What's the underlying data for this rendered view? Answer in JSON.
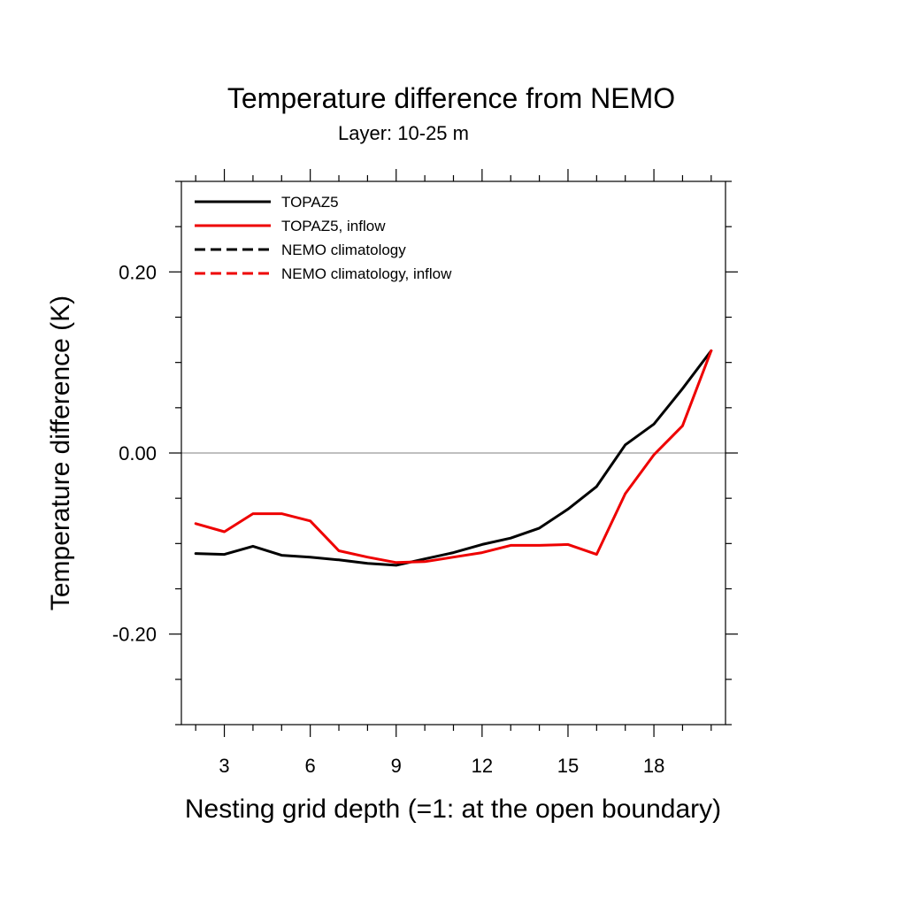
{
  "chart_data": {
    "type": "line",
    "title": "Temperature difference from NEMO",
    "subtitle": "Layer: 10-25 m",
    "xlabel": "Nesting grid depth (=1: at the open boundary)",
    "ylabel": "Temperature difference (K)",
    "xlim": [
      1.5,
      20.5
    ],
    "ylim": [
      -0.3,
      0.3
    ],
    "x_ticks": [
      3,
      6,
      9,
      12,
      15,
      18
    ],
    "x_tick_labels": [
      "3",
      "6",
      "9",
      "12",
      "15",
      "18"
    ],
    "y_ticks": [
      -0.2,
      0.0,
      0.2
    ],
    "y_tick_labels": [
      "-0.20",
      "0.00",
      "0.20"
    ],
    "zero_line": true,
    "grid": false,
    "legend_position": "top-left",
    "series": [
      {
        "name": "TOPAZ5",
        "color": "#000000",
        "dash": "solid",
        "x": [
          2,
          3,
          4,
          5,
          6,
          7,
          8,
          9,
          10,
          11,
          12,
          13,
          14,
          15,
          16,
          17,
          18,
          19,
          20
        ],
        "y": [
          -0.111,
          -0.112,
          -0.103,
          -0.113,
          -0.115,
          -0.118,
          -0.122,
          -0.124,
          -0.117,
          -0.11,
          -0.101,
          -0.094,
          -0.083,
          -0.062,
          -0.037,
          0.009,
          0.032,
          0.071,
          0.113
        ]
      },
      {
        "name": "TOPAZ5, inflow",
        "color": "#ee0000",
        "dash": "solid",
        "x": [
          2,
          3,
          4,
          5,
          6,
          7,
          8,
          9,
          10,
          11,
          12,
          13,
          14,
          15,
          16,
          17,
          18,
          19,
          20
        ],
        "y": [
          -0.078,
          -0.087,
          -0.067,
          -0.067,
          -0.075,
          -0.108,
          -0.115,
          -0.121,
          -0.12,
          -0.115,
          -0.11,
          -0.102,
          -0.102,
          -0.101,
          -0.112,
          -0.045,
          -0.002,
          0.03,
          0.113
        ]
      },
      {
        "name": "NEMO climatology",
        "color": "#000000",
        "dash": "dashed",
        "x": [],
        "y": []
      },
      {
        "name": "NEMO climatology, inflow",
        "color": "#ee0000",
        "dash": "dashed",
        "x": [],
        "y": []
      }
    ]
  }
}
